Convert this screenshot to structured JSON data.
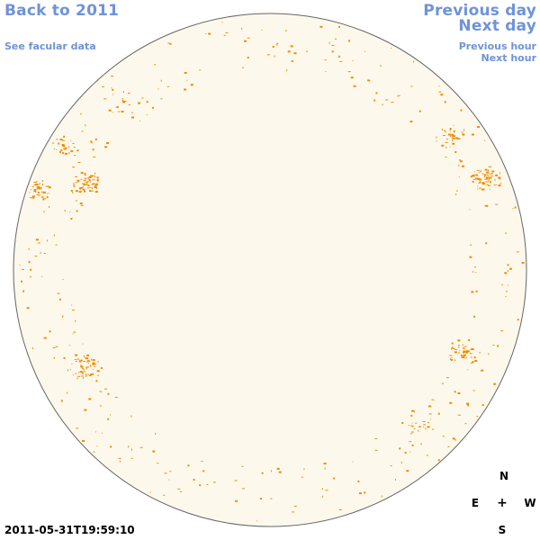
{
  "nav": {
    "back_label": "Back to 2011",
    "facular_label": "See facular data",
    "prev_day_label": "Previous day",
    "next_day_label": "Next day",
    "prev_hour_label": "Previous hour",
    "next_hour_label": "Next hour"
  },
  "compass": {
    "north": "N",
    "south": "S",
    "east": "E",
    "west": "W",
    "center": "+"
  },
  "timestamp": "2011-05-31T19:59:10",
  "colors": {
    "link": "#6f93d8",
    "disk_fill": "#fdf8ec",
    "disk_outline": "#666666",
    "feature": "#f08c00"
  }
}
